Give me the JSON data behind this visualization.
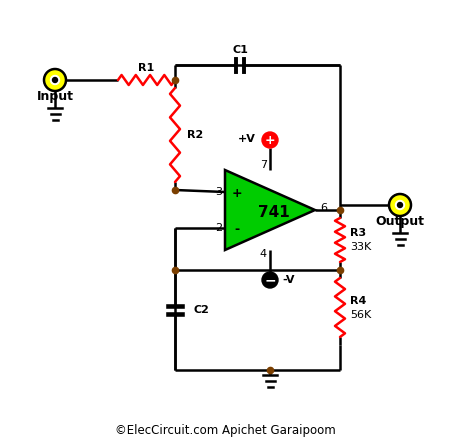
{
  "bg_color": "#ffffff",
  "wire_color": "#000000",
  "resistor_color": "#ff0000",
  "node_color": "#7B3F00",
  "opamp_fill": "#00cc00",
  "opamp_stroke": "#000000",
  "terminal_outer": "#ffff00",
  "terminal_inner": "#ffffff",
  "terminal_ring": "#000000",
  "plus_power_color": "#ff0000",
  "minus_power_color": "#000000",
  "title_text": "©ElecCircuit.com Apichet Garaipoom",
  "title_fontsize": 8.5,
  "label_fontsize": 9,
  "small_fontsize": 8,
  "input_label": "Input",
  "output_label": "Output",
  "r1_label": "R1",
  "r2_label": "R2",
  "r3_label": "R3",
  "r4_label": "R4",
  "c1_label": "C1",
  "c2_label": "C2",
  "r3_val": "33K",
  "r4_val": "56K",
  "plus_v_label": "+V",
  "minus_v_label": "-V",
  "opamp_label": "741",
  "pin3_label": "3",
  "pin2_label": "2",
  "pin6_label": "6",
  "pin7_label": "7",
  "pin4_label": "4",
  "plus_sign": "+",
  "minus_sign": "-"
}
